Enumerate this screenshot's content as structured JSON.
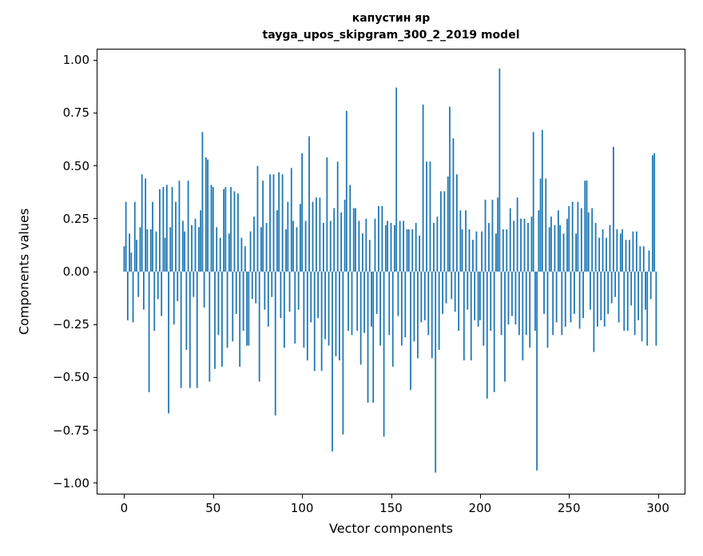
{
  "figure": {
    "title_line1": "капустин яр",
    "title_line2": "tayga_upos_skipgram_300_2_2019 model"
  },
  "chart_data": {
    "type": "bar",
    "title": "капустин яр",
    "subtitle": "tayga_upos_skipgram_300_2_2019 model",
    "xlabel": "Vector components",
    "ylabel": "Components values",
    "bar_color": "#1f77b4",
    "grid": false,
    "legend": "none",
    "xlim": [
      -15,
      315
    ],
    "ylim": [
      -1.05,
      1.05
    ],
    "xticks": [
      0,
      50,
      100,
      150,
      200,
      250,
      300
    ],
    "xtick_labels": [
      "0",
      "50",
      "100",
      "150",
      "200",
      "250",
      "300"
    ],
    "yticks": [
      1.0,
      0.75,
      0.5,
      0.25,
      0.0,
      -0.25,
      -0.5,
      -0.75,
      -1.0
    ],
    "ytick_labels": [
      "1.00",
      "0.75",
      "0.50",
      "0.25",
      "0.00",
      "−0.25",
      "−0.50",
      "−0.75",
      "−1.00"
    ],
    "values": [
      0.12,
      0.33,
      -0.23,
      0.18,
      0.09,
      -0.24,
      0.33,
      0.15,
      -0.12,
      0.21,
      0.46,
      -0.18,
      0.44,
      0.2,
      -0.57,
      0.2,
      0.33,
      -0.28,
      0.19,
      -0.13,
      0.39,
      -0.21,
      0.4,
      0.16,
      0.41,
      -0.67,
      0.21,
      0.4,
      -0.25,
      0.33,
      -0.14,
      0.43,
      -0.55,
      0.24,
      0.19,
      -0.37,
      0.43,
      -0.55,
      0.22,
      -0.12,
      0.25,
      -0.55,
      0.21,
      0.29,
      0.66,
      -0.17,
      0.54,
      0.53,
      -0.52,
      0.41,
      0.4,
      -0.46,
      0.21,
      -0.3,
      0.16,
      -0.45,
      0.39,
      0.4,
      -0.36,
      0.18,
      0.4,
      -0.33,
      0.38,
      -0.2,
      0.37,
      -0.45,
      0.16,
      -0.28,
      0.12,
      -0.35,
      -0.35,
      0.19,
      -0.13,
      0.26,
      -0.15,
      0.5,
      -0.52,
      0.21,
      0.43,
      -0.18,
      0.23,
      -0.26,
      0.46,
      -0.12,
      0.46,
      -0.68,
      0.29,
      0.47,
      -0.22,
      0.46,
      -0.36,
      0.2,
      0.33,
      -0.19,
      0.49,
      0.24,
      -0.34,
      0.21,
      -0.18,
      0.32,
      0.56,
      -0.36,
      0.24,
      -0.42,
      0.64,
      -0.24,
      0.33,
      -0.47,
      0.35,
      -0.22,
      0.35,
      -0.47,
      0.23,
      -0.32,
      0.54,
      -0.35,
      0.24,
      -0.85,
      0.3,
      -0.4,
      0.52,
      -0.42,
      0.28,
      -0.77,
      0.34,
      0.76,
      -0.28,
      0.41,
      -0.3,
      0.3,
      0.3,
      -0.28,
      0.24,
      -0.44,
      0.18,
      -0.29,
      0.25,
      -0.62,
      0.15,
      -0.26,
      -0.62,
      0.25,
      -0.2,
      0.31,
      -0.35,
      0.31,
      -0.78,
      0.22,
      0.24,
      -0.3,
      0.23,
      -0.45,
      0.22,
      0.87,
      -0.21,
      0.24,
      -0.35,
      0.24,
      -0.31,
      0.2,
      0.2,
      -0.56,
      0.2,
      -0.33,
      0.23,
      -0.41,
      0.17,
      -0.24,
      0.79,
      -0.23,
      0.52,
      -0.3,
      0.52,
      -0.41,
      0.23,
      -0.95,
      0.26,
      -0.37,
      0.38,
      -0.2,
      0.38,
      -0.15,
      0.45,
      0.78,
      -0.13,
      0.63,
      -0.19,
      0.46,
      -0.28,
      0.29,
      0.2,
      -0.42,
      0.29,
      -0.18,
      0.2,
      -0.42,
      0.15,
      -0.23,
      0.19,
      -0.26,
      -0.23,
      0.19,
      -0.35,
      0.34,
      -0.6,
      0.23,
      -0.28,
      0.34,
      -0.57,
      0.18,
      0.35,
      0.96,
      -0.3,
      0.2,
      -0.52,
      0.2,
      -0.25,
      0.3,
      -0.21,
      0.24,
      -0.25,
      0.35,
      -0.3,
      0.25,
      -0.42,
      0.25,
      -0.3,
      0.23,
      -0.36,
      0.26,
      0.66,
      -0.28,
      -0.94,
      0.29,
      0.44,
      0.67,
      -0.2,
      0.44,
      -0.36,
      0.21,
      0.26,
      -0.3,
      0.22,
      -0.24,
      0.29,
      0.22,
      -0.3,
      0.18,
      -0.26,
      0.25,
      0.31,
      -0.24,
      0.33,
      -0.2,
      0.18,
      0.33,
      -0.27,
      0.3,
      -0.22,
      0.43,
      0.43,
      0.28,
      -0.18,
      0.3,
      -0.38,
      0.23,
      -0.26,
      0.16,
      -0.23,
      0.2,
      -0.26,
      0.16,
      -0.2,
      0.22,
      -0.15,
      0.59,
      -0.12,
      0.2,
      -0.24,
      0.18,
      0.2,
      -0.28,
      0.15,
      -0.28,
      0.15,
      -0.16,
      0.19,
      -0.3,
      0.19,
      -0.23,
      0.12,
      -0.33,
      0.12,
      -0.18,
      -0.35,
      0.1,
      -0.13,
      0.55,
      0.56,
      -0.35
    ]
  }
}
